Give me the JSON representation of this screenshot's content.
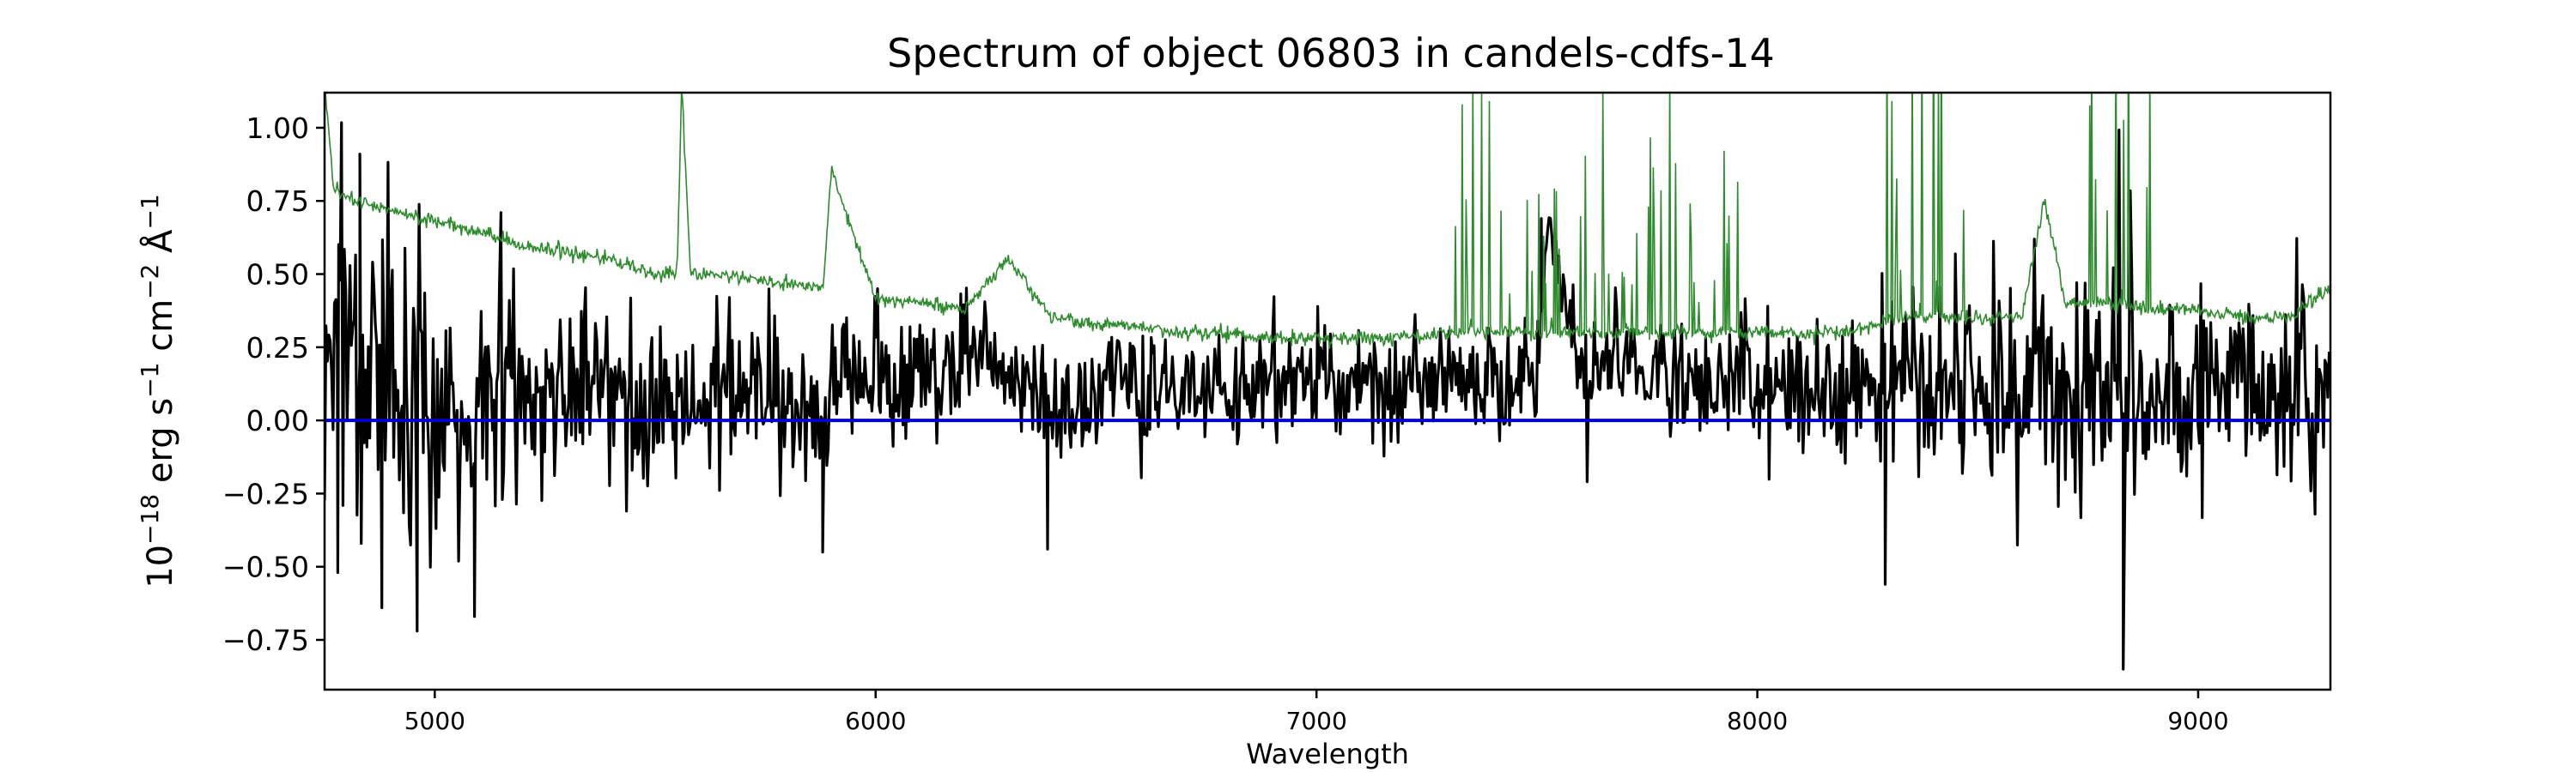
{
  "chart_data": {
    "type": "line",
    "title": "Spectrum of object 06803 in candels-cdfs-14",
    "xlabel": "Wavelength",
    "ylabel_parts": {
      "base": "10",
      "exp1": "−18",
      "mid1": " erg s",
      "exp2": "−1",
      "mid2": " cm",
      "exp3": "−2",
      "mid3": " Å",
      "exp4": "−1"
    },
    "xlim": [
      4750,
      9300
    ],
    "ylim": [
      -0.92,
      1.12
    ],
    "xticks": [
      5000,
      6000,
      7000,
      8000,
      9000
    ],
    "xtick_labels": [
      "5000",
      "6000",
      "7000",
      "8000",
      "9000"
    ],
    "yticks": [
      1.0,
      0.75,
      0.5,
      0.25,
      0.0,
      -0.25,
      -0.5,
      -0.75
    ],
    "ytick_labels": [
      "1.00",
      "0.75",
      "0.50",
      "0.25",
      "0.00",
      "−0.25",
      "−0.50",
      "−0.75"
    ],
    "grid": false,
    "series": [
      {
        "role": "flux",
        "color": "#000000",
        "x": [
          4750,
          4800,
          4850,
          4900,
          4950,
          5000,
          5050,
          5100,
          5150,
          5200,
          5300,
          5400,
          5500,
          5600,
          5700,
          5800,
          5870,
          5900,
          6000,
          6100,
          6200,
          6260,
          6300,
          6400,
          6500,
          6560,
          6600,
          6700,
          6800,
          6900,
          7000,
          7100,
          7200,
          7300,
          7400,
          7500,
          7520,
          7600,
          7700,
          7800,
          7900,
          8000,
          8100,
          8200,
          8300,
          8350,
          8400,
          8450,
          8500,
          8600,
          8700,
          8800,
          8830,
          8900,
          9000,
          9100,
          9200,
          9300
        ],
        "y": [
          0.1,
          0.3,
          0.1,
          0.15,
          0.05,
          0.1,
          -0.1,
          0.05,
          0.15,
          0.1,
          0.05,
          0.1,
          0.0,
          0.05,
          0.1,
          0.05,
          0.0,
          0.1,
          0.2,
          0.15,
          0.2,
          0.25,
          0.15,
          0.05,
          0.1,
          0.2,
          0.05,
          0.1,
          0.1,
          0.15,
          0.15,
          0.1,
          0.1,
          0.15,
          0.1,
          0.15,
          0.7,
          0.15,
          0.2,
          0.15,
          0.1,
          0.15,
          0.1,
          0.1,
          0.2,
          0.15,
          0.2,
          0.2,
          0.15,
          0.1,
          0.1,
          0.1,
          0.15,
          0.1,
          0.15,
          0.1,
          0.05,
          0.05
        ],
        "noise_sigma": [
          0.35,
          0.3,
          0.3,
          0.28,
          0.25,
          0.22,
          0.22,
          0.2,
          0.18,
          0.17,
          0.16,
          0.15,
          0.15,
          0.14,
          0.14,
          0.13,
          0.12,
          0.12,
          0.12,
          0.12,
          0.11,
          0.11,
          0.11,
          0.12,
          0.11,
          0.11,
          0.11,
          0.1,
          0.1,
          0.1,
          0.1,
          0.1,
          0.1,
          0.1,
          0.1,
          0.1,
          0.1,
          0.1,
          0.1,
          0.12,
          0.12,
          0.12,
          0.12,
          0.12,
          0.15,
          0.18,
          0.2,
          0.2,
          0.18,
          0.18,
          0.2,
          0.22,
          0.22,
          0.2,
          0.18,
          0.18,
          0.18,
          0.2
        ],
        "notable_points": [
          {
            "x": 4780,
            "y": -0.52
          },
          {
            "x": 4830,
            "y": 0.91
          },
          {
            "x": 4880,
            "y": -0.64
          },
          {
            "x": 4960,
            "y": -0.72
          },
          {
            "x": 5090,
            "y": -0.67
          },
          {
            "x": 5880,
            "y": -0.45
          },
          {
            "x": 6390,
            "y": -0.44
          },
          {
            "x": 7510,
            "y": 0.69
          },
          {
            "x": 8290,
            "y": -0.56
          },
          {
            "x": 8830,
            "y": -0.85
          }
        ]
      },
      {
        "role": "uncertainty",
        "color": "#2e8b2e",
        "x": [
          4750,
          4770,
          4800,
          4900,
          5000,
          5200,
          5400,
          5500,
          5550,
          5560,
          5580,
          5600,
          5800,
          5880,
          5900,
          6000,
          6200,
          6300,
          6400,
          6500,
          6600,
          6700,
          6800,
          6900,
          7000,
          7100,
          7200,
          7300,
          7400,
          7500,
          7600,
          7700,
          7800,
          7900,
          8000,
          8100,
          8200,
          8300,
          8400,
          8500,
          8600,
          8650,
          8700,
          8800,
          8900,
          9000,
          9100,
          9200,
          9300
        ],
        "y": [
          1.15,
          0.8,
          0.76,
          0.72,
          0.68,
          0.6,
          0.55,
          0.5,
          0.5,
          1.15,
          0.5,
          0.5,
          0.47,
          0.45,
          0.85,
          0.42,
          0.38,
          0.55,
          0.35,
          0.33,
          0.32,
          0.3,
          0.3,
          0.28,
          0.28,
          0.28,
          0.28,
          0.3,
          0.3,
          0.3,
          0.3,
          0.3,
          0.3,
          0.3,
          0.3,
          0.3,
          0.3,
          0.35,
          0.35,
          0.35,
          0.35,
          0.75,
          0.4,
          0.4,
          0.38,
          0.38,
          0.35,
          0.35,
          0.45
        ],
        "spike_regions": [
          {
            "from": 7300,
            "to": 8000,
            "amplitude": 0.9
          },
          {
            "from": 8280,
            "to": 8480,
            "amplitude": 1.15
          },
          {
            "from": 8750,
            "to": 8950,
            "amplitude": 1.15
          }
        ]
      },
      {
        "role": "zero-line",
        "color": "#0000cc",
        "x": [
          4750,
          9300
        ],
        "y": [
          0.0,
          0.0
        ]
      }
    ]
  }
}
